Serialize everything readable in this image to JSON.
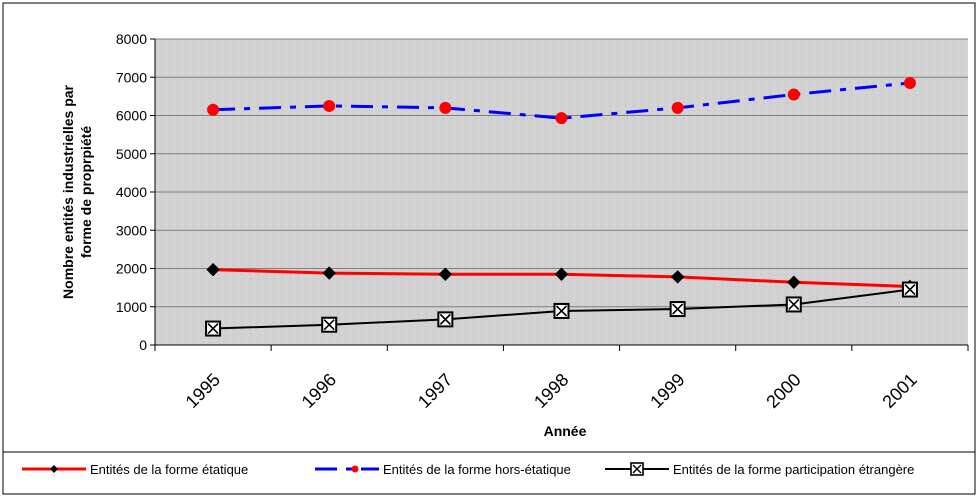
{
  "chart_data": {
    "type": "line",
    "xlabel": "Année",
    "ylabel": "Nombre entités industrielles par forme de proprpiété",
    "ylabel_lines": [
      "Nombre entités industrielles par",
      "forme de proprpiété"
    ],
    "categories": [
      "1995",
      "1996",
      "1997",
      "1998",
      "1999",
      "2000",
      "2001"
    ],
    "yticks": [
      "0",
      "1000",
      "2000",
      "3000",
      "4000",
      "5000",
      "6000",
      "7000",
      "8000"
    ],
    "ylim": [
      0,
      8000
    ],
    "grid": true,
    "legend_position": "bottom",
    "series": [
      {
        "name": "Entités de la forme étatique",
        "values": [
          1970,
          1880,
          1850,
          1850,
          1780,
          1640,
          1530
        ],
        "color": "#ff0000",
        "line_style": "solid",
        "marker": "diamond"
      },
      {
        "name": "Entités de la forme hors-étatique",
        "values": [
          6150,
          6250,
          6200,
          5930,
          6200,
          6550,
          6850
        ],
        "color": "#0000ff",
        "line_style": "dash",
        "marker": "red-circle"
      },
      {
        "name": "Entités de la forme participation étrangère",
        "values": [
          430,
          530,
          670,
          890,
          940,
          1060,
          1450
        ],
        "color": "#000000",
        "line_style": "solid",
        "marker": "boxed-x"
      }
    ]
  }
}
